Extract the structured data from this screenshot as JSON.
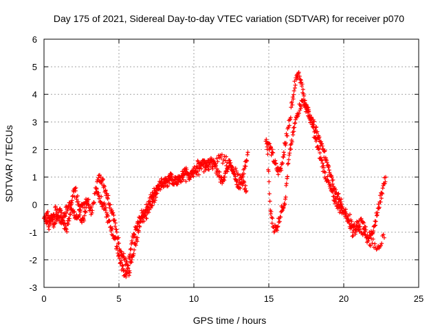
{
  "chart_data": {
    "type": "scatter",
    "title": "Day 175 of 2021, Sidereal Day-to-day VTEC variation (SDTVAR) for receiver p070",
    "xlabel": "GPS time / hours",
    "ylabel": "SDTVAR / TECUs",
    "xlim": [
      0,
      25
    ],
    "ylim": [
      -3,
      6
    ],
    "x_ticks": [
      "0",
      "5",
      "10",
      "15",
      "20",
      "25"
    ],
    "y_ticks": [
      "-3",
      "-2",
      "-1",
      "0",
      "1",
      "2",
      "3",
      "4",
      "5",
      "6"
    ],
    "grid": true,
    "marker": "+",
    "color": "#ff0000",
    "series": [
      {
        "name": "SDTVAR",
        "x": [
          0.0,
          0.2,
          0.4,
          0.6,
          0.8,
          1.0,
          1.2,
          1.4,
          1.6,
          1.8,
          2.0,
          2.2,
          2.4,
          2.6,
          2.8,
          3.0,
          3.2,
          3.4,
          3.6,
          3.8,
          4.0,
          4.2,
          4.4,
          4.6,
          4.8,
          5.0,
          5.2,
          5.4,
          5.6,
          5.8,
          6.0,
          6.2,
          6.4,
          6.6,
          6.8,
          7.0,
          7.2,
          7.4,
          7.6,
          7.8,
          8.0,
          8.2,
          8.4,
          8.6,
          8.8,
          9.0,
          9.2,
          9.4,
          9.6,
          9.8,
          10.0,
          10.2,
          10.4,
          10.6,
          10.8,
          11.0,
          11.2,
          11.4,
          11.6,
          11.8,
          12.0,
          12.2,
          12.4,
          12.6,
          12.8,
          13.0,
          13.2,
          13.4,
          13.6,
          14.8,
          15.0,
          15.2,
          15.4,
          15.6,
          15.8,
          16.0,
          16.2,
          16.4,
          16.6,
          16.8,
          17.0,
          17.2,
          17.4,
          17.6,
          17.8,
          18.0,
          18.2,
          18.4,
          18.6,
          18.8,
          19.0,
          19.2,
          19.4,
          19.6,
          19.8,
          20.0,
          20.2,
          20.4,
          20.6,
          20.8,
          21.0,
          21.2,
          21.4,
          21.6,
          21.8,
          22.0,
          22.2,
          22.4,
          22.6,
          22.8
        ],
        "y": [
          -0.5,
          -0.3,
          -0.6,
          -0.4,
          -0.2,
          -0.5,
          -0.6,
          -0.3,
          -0.1,
          0.1,
          -0.4,
          -0.5,
          -0.2,
          -0.1,
          0.2,
          0.0,
          -0.3,
          0.4,
          0.9,
          1.0,
          0.7,
          0.4,
          0.0,
          -0.3,
          -0.9,
          -1.4,
          -1.8,
          -2.0,
          -2.3,
          -1.6,
          -1.1,
          -0.8,
          -0.5,
          -0.3,
          -0.2,
          0.1,
          0.3,
          0.5,
          0.7,
          0.8,
          0.8,
          0.9,
          1.0,
          0.9,
          0.8,
          0.9,
          1.0,
          1.3,
          1.1,
          1.0,
          1.2,
          1.4,
          1.5,
          1.6,
          1.5,
          1.6,
          1.5,
          1.4,
          1.2,
          0.9,
          1.0,
          1.3,
          1.6,
          1.2,
          0.9,
          0.6,
          0.9,
          1.4,
          1.9,
          2.3,
          2.2,
          1.9,
          1.5,
          1.2,
          1.3,
          1.9,
          2.5,
          3.1,
          3.9,
          4.6,
          4.8,
          4.3,
          3.7,
          3.4,
          3.1,
          2.9,
          2.6,
          2.3,
          2.0,
          1.7,
          1.4,
          1.0,
          0.6,
          0.3,
          0.1,
          -0.2,
          -0.5,
          -0.8,
          -1.0,
          -0.9,
          -0.7,
          -0.6,
          -0.8,
          -1.2,
          -1.1,
          -0.8,
          -0.4,
          0.1,
          0.6,
          1.0
        ],
        "x_b": [
          0.1,
          0.3,
          0.5,
          0.7,
          0.9,
          1.1,
          1.3,
          1.5,
          1.7,
          1.9,
          2.1,
          2.3,
          2.5,
          2.7,
          2.9,
          3.5,
          3.7,
          3.9,
          4.1,
          4.3,
          4.5,
          4.7,
          4.9,
          5.1,
          5.3,
          5.5,
          5.7,
          5.9,
          6.1,
          6.3,
          6.5,
          6.7,
          6.9,
          7.1,
          7.3,
          7.5,
          7.7,
          8.1,
          8.5,
          8.9,
          9.3,
          9.7,
          10.1,
          10.5,
          10.9,
          11.3,
          11.7,
          12.1,
          12.5,
          12.9,
          13.3,
          13.5,
          14.9,
          15.1,
          15.3,
          15.5,
          15.7,
          15.9,
          16.1,
          16.3,
          16.5,
          16.7,
          16.9,
          17.1,
          17.3,
          17.5,
          17.7,
          17.9,
          18.1,
          18.3,
          18.5,
          18.7,
          18.9,
          19.1,
          19.3,
          19.5,
          19.7,
          19.9,
          20.3,
          20.7,
          21.1,
          21.5,
          21.9,
          22.3,
          22.7
        ],
        "y_b": [
          -0.6,
          -0.8,
          -0.5,
          -0.7,
          -0.4,
          -0.2,
          -0.7,
          -0.9,
          -0.5,
          0.3,
          0.5,
          0.1,
          -0.6,
          -0.4,
          0.1,
          0.6,
          0.3,
          0.0,
          -0.2,
          -0.6,
          -0.9,
          -1.2,
          -1.6,
          -2.1,
          -2.4,
          -2.5,
          -2.4,
          -1.9,
          -1.4,
          -1.0,
          -0.6,
          -0.4,
          -0.3,
          0.0,
          0.2,
          0.4,
          0.6,
          0.8,
          0.9,
          0.9,
          0.9,
          1.1,
          1.2,
          1.3,
          1.4,
          1.5,
          1.7,
          1.6,
          1.4,
          1.1,
          0.8,
          0.5,
          2.0,
          -0.2,
          -0.8,
          -0.9,
          -0.5,
          -0.1,
          0.2,
          1.5,
          2.2,
          2.8,
          3.3,
          3.6,
          3.8,
          3.5,
          3.2,
          2.9,
          2.4,
          2.0,
          1.6,
          1.2,
          0.9,
          0.6,
          0.3,
          0.1,
          -0.1,
          -0.2,
          -0.4,
          -0.7,
          -0.9,
          -1.2,
          -1.4,
          -1.5,
          -1.2
        ]
      }
    ]
  }
}
